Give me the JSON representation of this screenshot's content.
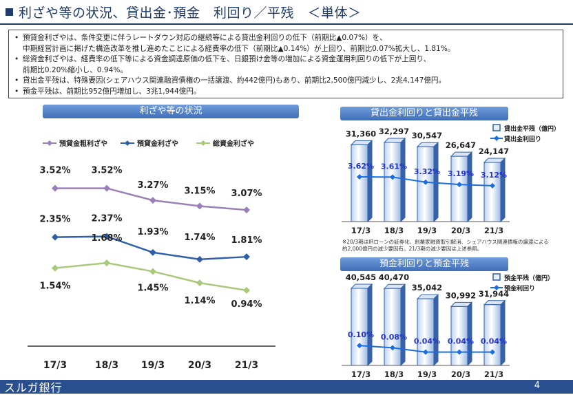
{
  "slide": {
    "title": "利ざや等の状況、貸出金･預金　利回り／平残　＜単体＞",
    "summary": [
      "預貸金利ざやは、条件変更に伴うレートダウン対応の継続等による貸出金利回りの低下（前期比▲0.07%）を、\n中期経営計画に掲げた構造改革を推し進めたことによる経費率の低下（前期比▲0.14%）が上回り、前期比0.07%拡大し、1.81%。",
      "総資金利ざやは、経費率の低下等による資金調達原価の低下を、日銀預け金等の増加による資金運用利回りの低下が上回り、\n前期比0.20%縮小し、0.94%。",
      "貸出金平残は、特殊要因(シェアハウス関連融資債権の一括譲渡、約442億円)もあり、前期比2,500億円減少し、2兆4,147億円。",
      "預金平残は、前期比952億円増加し、3兆1,944億円。"
    ],
    "note": "※20/3期はIRローンの証券化、創業家融資取引解消、シェアハウス関連債権の譲渡による\n約2,000億円の減少要因有。21/3期の減少要因は上述参照。",
    "footer_brand": "スルガ銀行",
    "page_number": "4"
  },
  "chart_data": [
    {
      "type": "line",
      "title": "利ざや等の状況",
      "categories": [
        "17/3",
        "18/3",
        "19/3",
        "20/3",
        "21/3"
      ],
      "series": [
        {
          "name": "預貸金粗利ざや",
          "color": "#9b7fb8",
          "values": [
            3.52,
            3.52,
            3.27,
            3.15,
            3.07
          ],
          "labels": [
            "3.52%",
            "3.52%",
            "3.27%",
            "3.15%",
            "3.07%"
          ]
        },
        {
          "name": "預貸金利ざや",
          "color": "#2f5fa8",
          "values": [
            2.35,
            2.37,
            1.93,
            1.74,
            1.81
          ],
          "labels": [
            "2.35%",
            "2.37%",
            "1.93%",
            "1.74%",
            "1.81%"
          ]
        },
        {
          "name": "総資金利ざや",
          "color": "#a8c87a",
          "values": [
            1.54,
            1.68,
            1.45,
            1.14,
            0.94
          ],
          "labels": [
            "1.54%",
            "1.68%",
            "1.45%",
            "1.14%",
            "0.94%"
          ]
        }
      ],
      "legend_position": "top"
    },
    {
      "type": "bar",
      "title": "貸出金利回りと貸出金平残",
      "categories": [
        "17/3",
        "18/3",
        "19/3",
        "20/3",
        "21/3"
      ],
      "series": [
        {
          "name": "貸出金平残（億円）",
          "values": [
            31360,
            32297,
            30547,
            26647,
            24147
          ],
          "labels": [
            "31,360",
            "32,297",
            "30,547",
            "26,647",
            "24,147"
          ]
        },
        {
          "name": "貸出金利回り",
          "values": [
            3.62,
            3.61,
            3.32,
            3.19,
            3.12
          ],
          "labels": [
            "3.62%",
            "3.61%",
            "3.32%",
            "3.19%",
            "3.12%"
          ]
        }
      ],
      "legend_position": "top-right"
    },
    {
      "type": "bar",
      "title": "預金利回りと預金平残",
      "categories": [
        "17/3",
        "18/3",
        "19/3",
        "20/3",
        "21/3"
      ],
      "series": [
        {
          "name": "預金平残（億円）",
          "values": [
            40545,
            40470,
            35042,
            30992,
            31944
          ],
          "labels": [
            "40,545",
            "40,470",
            "35,042",
            "30,992",
            "31,944"
          ]
        },
        {
          "name": "預金利回り",
          "values": [
            0.1,
            0.08,
            0.04,
            0.04,
            0.04
          ],
          "labels": [
            "0.10%",
            "0.08%",
            "0.04%",
            "0.04%",
            "0.04%"
          ]
        }
      ],
      "legend_position": "top-right"
    }
  ]
}
